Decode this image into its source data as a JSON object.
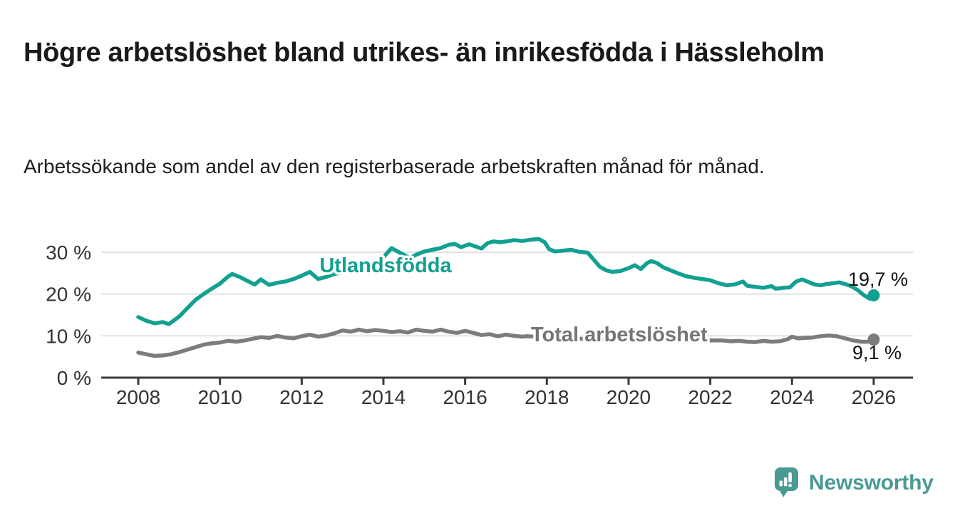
{
  "header": {
    "title": "Högre arbetslöshet bland utrikes- än inrikesfödda i Hässleholm",
    "subtitle": "Arbetssökande som andel av den registerbaserade arbetskraften månad för månad."
  },
  "chart_data": {
    "type": "line",
    "title": "Högre arbetslöshet bland utrikes- än inrikesfödda i Hässleholm",
    "subtitle": "Arbetssökande som andel av den registerbaserade arbetskraften månad för månad.",
    "xlabel": "",
    "ylabel": "",
    "grid": "horizontal",
    "legend_position": "inline-labels",
    "x_axis": {
      "range": [
        2007.1,
        2026.95
      ],
      "ticks": [
        {
          "value": 2008,
          "label": "2008"
        },
        {
          "value": 2010,
          "label": "2010"
        },
        {
          "value": 2012,
          "label": "2012"
        },
        {
          "value": 2014,
          "label": "2014"
        },
        {
          "value": 2016,
          "label": "2016"
        },
        {
          "value": 2018,
          "label": "2018"
        },
        {
          "value": 2020,
          "label": "2020"
        },
        {
          "value": 2022,
          "label": "2022"
        },
        {
          "value": 2024,
          "label": "2024"
        },
        {
          "value": 2026,
          "label": "2026"
        }
      ]
    },
    "y_axis": {
      "range": [
        0,
        35.8
      ],
      "unit": "%",
      "ticks": [
        {
          "value": 0,
          "label": "0 %"
        },
        {
          "value": 10,
          "label": "10 %"
        },
        {
          "value": 20,
          "label": "20 %"
        },
        {
          "value": 30,
          "label": "30 %"
        }
      ]
    },
    "series": [
      {
        "name": "Utlandsfödda",
        "color": "#12a091",
        "end_label": "19,7 %",
        "end_value": 19.7,
        "points": [
          [
            2008.0,
            14.5
          ],
          [
            2008.2,
            13.6
          ],
          [
            2008.4,
            13.0
          ],
          [
            2008.6,
            13.3
          ],
          [
            2008.75,
            12.8
          ],
          [
            2008.9,
            13.9
          ],
          [
            2009.0,
            14.6
          ],
          [
            2009.2,
            16.6
          ],
          [
            2009.4,
            18.6
          ],
          [
            2009.6,
            20.0
          ],
          [
            2009.8,
            21.3
          ],
          [
            2010.0,
            22.5
          ],
          [
            2010.2,
            24.2
          ],
          [
            2010.3,
            24.8
          ],
          [
            2010.5,
            24.0
          ],
          [
            2010.7,
            23.0
          ],
          [
            2010.85,
            22.3
          ],
          [
            2011.0,
            23.5
          ],
          [
            2011.2,
            22.2
          ],
          [
            2011.4,
            22.7
          ],
          [
            2011.6,
            23.0
          ],
          [
            2011.8,
            23.6
          ],
          [
            2012.0,
            24.4
          ],
          [
            2012.2,
            25.3
          ],
          [
            2012.4,
            23.6
          ],
          [
            2012.6,
            24.1
          ],
          [
            2012.8,
            24.8
          ],
          [
            2013.0,
            25.2
          ],
          [
            2013.2,
            26.5
          ],
          [
            2013.4,
            26.9
          ],
          [
            2013.6,
            26.2
          ],
          [
            2013.8,
            27.2
          ],
          [
            2014.0,
            28.8
          ],
          [
            2014.2,
            31.0
          ],
          [
            2014.35,
            30.2
          ],
          [
            2014.5,
            29.4
          ],
          [
            2014.65,
            28.6
          ],
          [
            2014.8,
            29.4
          ],
          [
            2015.0,
            30.2
          ],
          [
            2015.2,
            30.6
          ],
          [
            2015.4,
            31.0
          ],
          [
            2015.6,
            31.8
          ],
          [
            2015.75,
            32.0
          ],
          [
            2015.9,
            31.2
          ],
          [
            2016.0,
            31.6
          ],
          [
            2016.1,
            31.9
          ],
          [
            2016.25,
            31.4
          ],
          [
            2016.4,
            30.9
          ],
          [
            2016.55,
            32.2
          ],
          [
            2016.7,
            32.6
          ],
          [
            2016.85,
            32.4
          ],
          [
            2017.0,
            32.6
          ],
          [
            2017.2,
            32.9
          ],
          [
            2017.4,
            32.7
          ],
          [
            2017.6,
            33.0
          ],
          [
            2017.8,
            33.2
          ],
          [
            2017.95,
            32.4
          ],
          [
            2018.05,
            30.8
          ],
          [
            2018.2,
            30.2
          ],
          [
            2018.4,
            30.4
          ],
          [
            2018.6,
            30.6
          ],
          [
            2018.8,
            30.1
          ],
          [
            2019.0,
            29.9
          ],
          [
            2019.15,
            28.2
          ],
          [
            2019.3,
            26.5
          ],
          [
            2019.45,
            25.7
          ],
          [
            2019.6,
            25.3
          ],
          [
            2019.8,
            25.5
          ],
          [
            2020.0,
            26.2
          ],
          [
            2020.15,
            26.9
          ],
          [
            2020.3,
            26.0
          ],
          [
            2020.45,
            27.4
          ],
          [
            2020.55,
            27.9
          ],
          [
            2020.7,
            27.4
          ],
          [
            2020.85,
            26.4
          ],
          [
            2021.0,
            25.8
          ],
          [
            2021.2,
            25.0
          ],
          [
            2021.4,
            24.3
          ],
          [
            2021.6,
            23.9
          ],
          [
            2021.8,
            23.6
          ],
          [
            2022.0,
            23.3
          ],
          [
            2022.2,
            22.6
          ],
          [
            2022.4,
            22.1
          ],
          [
            2022.6,
            22.3
          ],
          [
            2022.8,
            23.0
          ],
          [
            2022.9,
            22.0
          ],
          [
            2023.1,
            21.7
          ],
          [
            2023.3,
            21.5
          ],
          [
            2023.5,
            21.9
          ],
          [
            2023.6,
            21.3
          ],
          [
            2023.8,
            21.5
          ],
          [
            2023.95,
            21.6
          ],
          [
            2024.1,
            23.0
          ],
          [
            2024.25,
            23.5
          ],
          [
            2024.4,
            22.9
          ],
          [
            2024.55,
            22.3
          ],
          [
            2024.7,
            22.1
          ],
          [
            2024.85,
            22.4
          ],
          [
            2025.0,
            22.6
          ],
          [
            2025.15,
            22.8
          ],
          [
            2025.3,
            22.4
          ],
          [
            2025.45,
            21.9
          ],
          [
            2025.6,
            21.0
          ],
          [
            2025.75,
            19.8
          ],
          [
            2025.9,
            18.9
          ],
          [
            2026.0,
            19.7
          ]
        ]
      },
      {
        "name": "Total arbetslöshet",
        "color": "#7c7c7c",
        "end_label": "9,1 %",
        "end_value": 9.1,
        "points": [
          [
            2008.0,
            6.0
          ],
          [
            2008.2,
            5.6
          ],
          [
            2008.4,
            5.2
          ],
          [
            2008.6,
            5.3
          ],
          [
            2008.8,
            5.6
          ],
          [
            2009.0,
            6.1
          ],
          [
            2009.2,
            6.7
          ],
          [
            2009.4,
            7.3
          ],
          [
            2009.6,
            7.9
          ],
          [
            2009.8,
            8.2
          ],
          [
            2010.0,
            8.4
          ],
          [
            2010.2,
            8.8
          ],
          [
            2010.4,
            8.6
          ],
          [
            2010.6,
            8.9
          ],
          [
            2010.8,
            9.3
          ],
          [
            2011.0,
            9.7
          ],
          [
            2011.2,
            9.5
          ],
          [
            2011.4,
            10.0
          ],
          [
            2011.6,
            9.6
          ],
          [
            2011.8,
            9.4
          ],
          [
            2012.0,
            9.9
          ],
          [
            2012.2,
            10.3
          ],
          [
            2012.4,
            9.8
          ],
          [
            2012.6,
            10.1
          ],
          [
            2012.8,
            10.6
          ],
          [
            2013.0,
            11.3
          ],
          [
            2013.2,
            11.0
          ],
          [
            2013.4,
            11.5
          ],
          [
            2013.6,
            11.1
          ],
          [
            2013.8,
            11.4
          ],
          [
            2014.0,
            11.2
          ],
          [
            2014.2,
            10.9
          ],
          [
            2014.4,
            11.1
          ],
          [
            2014.6,
            10.8
          ],
          [
            2014.8,
            11.5
          ],
          [
            2015.0,
            11.2
          ],
          [
            2015.2,
            11.0
          ],
          [
            2015.4,
            11.5
          ],
          [
            2015.6,
            11.0
          ],
          [
            2015.8,
            10.7
          ],
          [
            2016.0,
            11.2
          ],
          [
            2016.2,
            10.7
          ],
          [
            2016.4,
            10.2
          ],
          [
            2016.6,
            10.4
          ],
          [
            2016.8,
            9.9
          ],
          [
            2017.0,
            10.3
          ],
          [
            2017.2,
            10.0
          ],
          [
            2017.4,
            9.8
          ],
          [
            2017.5,
            9.9
          ],
          [
            2018.0,
            9.7
          ],
          [
            2018.5,
            9.5
          ],
          [
            2019.0,
            9.2
          ],
          [
            2019.5,
            9.1
          ],
          [
            2020.0,
            9.6
          ],
          [
            2020.5,
            9.9
          ],
          [
            2021.0,
            9.4
          ],
          [
            2021.5,
            9.1
          ],
          [
            2022.0,
            8.9
          ],
          [
            2022.3,
            8.9
          ],
          [
            2022.5,
            8.7
          ],
          [
            2022.7,
            8.8
          ],
          [
            2022.9,
            8.6
          ],
          [
            2023.1,
            8.5
          ],
          [
            2023.3,
            8.8
          ],
          [
            2023.5,
            8.6
          ],
          [
            2023.7,
            8.7
          ],
          [
            2023.9,
            9.2
          ],
          [
            2024.0,
            9.8
          ],
          [
            2024.15,
            9.4
          ],
          [
            2024.3,
            9.5
          ],
          [
            2024.5,
            9.6
          ],
          [
            2024.7,
            9.9
          ],
          [
            2024.9,
            10.1
          ],
          [
            2025.1,
            9.9
          ],
          [
            2025.3,
            9.4
          ],
          [
            2025.5,
            8.9
          ],
          [
            2025.7,
            8.6
          ],
          [
            2025.85,
            8.6
          ],
          [
            2026.0,
            9.1
          ]
        ]
      }
    ]
  },
  "branding": {
    "logo_text": "Newsworthy",
    "logo_color": "#4a9a93"
  }
}
